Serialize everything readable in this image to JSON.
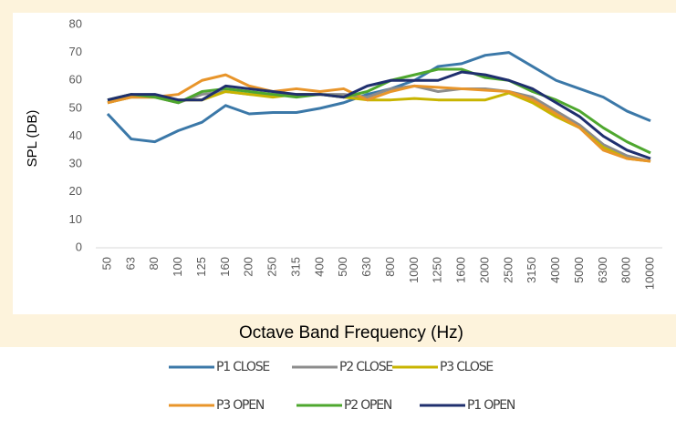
{
  "chart_data": {
    "type": "line",
    "ylabel": "SPL (DB)",
    "xlabel": "Octave Band Frequency (Hz)",
    "categories": [
      "50",
      "63",
      "80",
      "100",
      "125",
      "160",
      "200",
      "250",
      "315",
      "400",
      "500",
      "630",
      "800",
      "1000",
      "1250",
      "1600",
      "2000",
      "2500",
      "3150",
      "4000",
      "5000",
      "6300",
      "8000",
      "10000"
    ],
    "ylim": [
      0,
      80
    ],
    "yticks": [
      0,
      10,
      20,
      30,
      40,
      50,
      60,
      70,
      80
    ],
    "grid": false,
    "series": [
      {
        "name": "P1 CLOSE",
        "color": "#3b78a8",
        "values": [
          48,
          39,
          38,
          42,
          45,
          51,
          48,
          48.5,
          48.5,
          50,
          52,
          55,
          57,
          60,
          65,
          66,
          69,
          70,
          65,
          60,
          57,
          54,
          49,
          45.5
        ]
      },
      {
        "name": "P2 CLOSE",
        "color": "#8c8c8c",
        "values": [
          52,
          54,
          54,
          52,
          55,
          56,
          55,
          55,
          55,
          55,
          55,
          54,
          57,
          58,
          56,
          57,
          57,
          56,
          54,
          49,
          44,
          37,
          33,
          31
        ]
      },
      {
        "name": "P3 CLOSE",
        "color": "#c8b400",
        "values": [
          52,
          54,
          54,
          53,
          53,
          56,
          55,
          54,
          55,
          55,
          54,
          53,
          53,
          53.5,
          53,
          53,
          53,
          55.5,
          52,
          47,
          43,
          36,
          32,
          31
        ]
      },
      {
        "name": "P3 OPEN",
        "color": "#e8952a",
        "values": [
          52,
          54,
          54,
          55,
          60,
          62,
          58,
          56,
          57,
          56,
          57,
          53,
          56,
          58,
          57.5,
          57,
          56.5,
          56,
          53,
          48,
          43,
          35,
          32,
          31
        ]
      },
      {
        "name": "P2 OPEN",
        "color": "#4ea72e",
        "values": [
          53,
          55,
          54,
          52,
          56,
          57,
          56,
          55,
          54,
          55,
          54,
          56,
          60,
          62,
          64,
          64,
          61,
          60,
          56,
          53,
          49,
          43,
          38,
          34
        ]
      },
      {
        "name": "P1 OPEN",
        "color": "#1f2f6e",
        "values": [
          53,
          55,
          55,
          53,
          53,
          58,
          57,
          56,
          55,
          55,
          54,
          58,
          60,
          60,
          60,
          63,
          62,
          60,
          57,
          52,
          47,
          40,
          35,
          32
        ]
      }
    ]
  }
}
